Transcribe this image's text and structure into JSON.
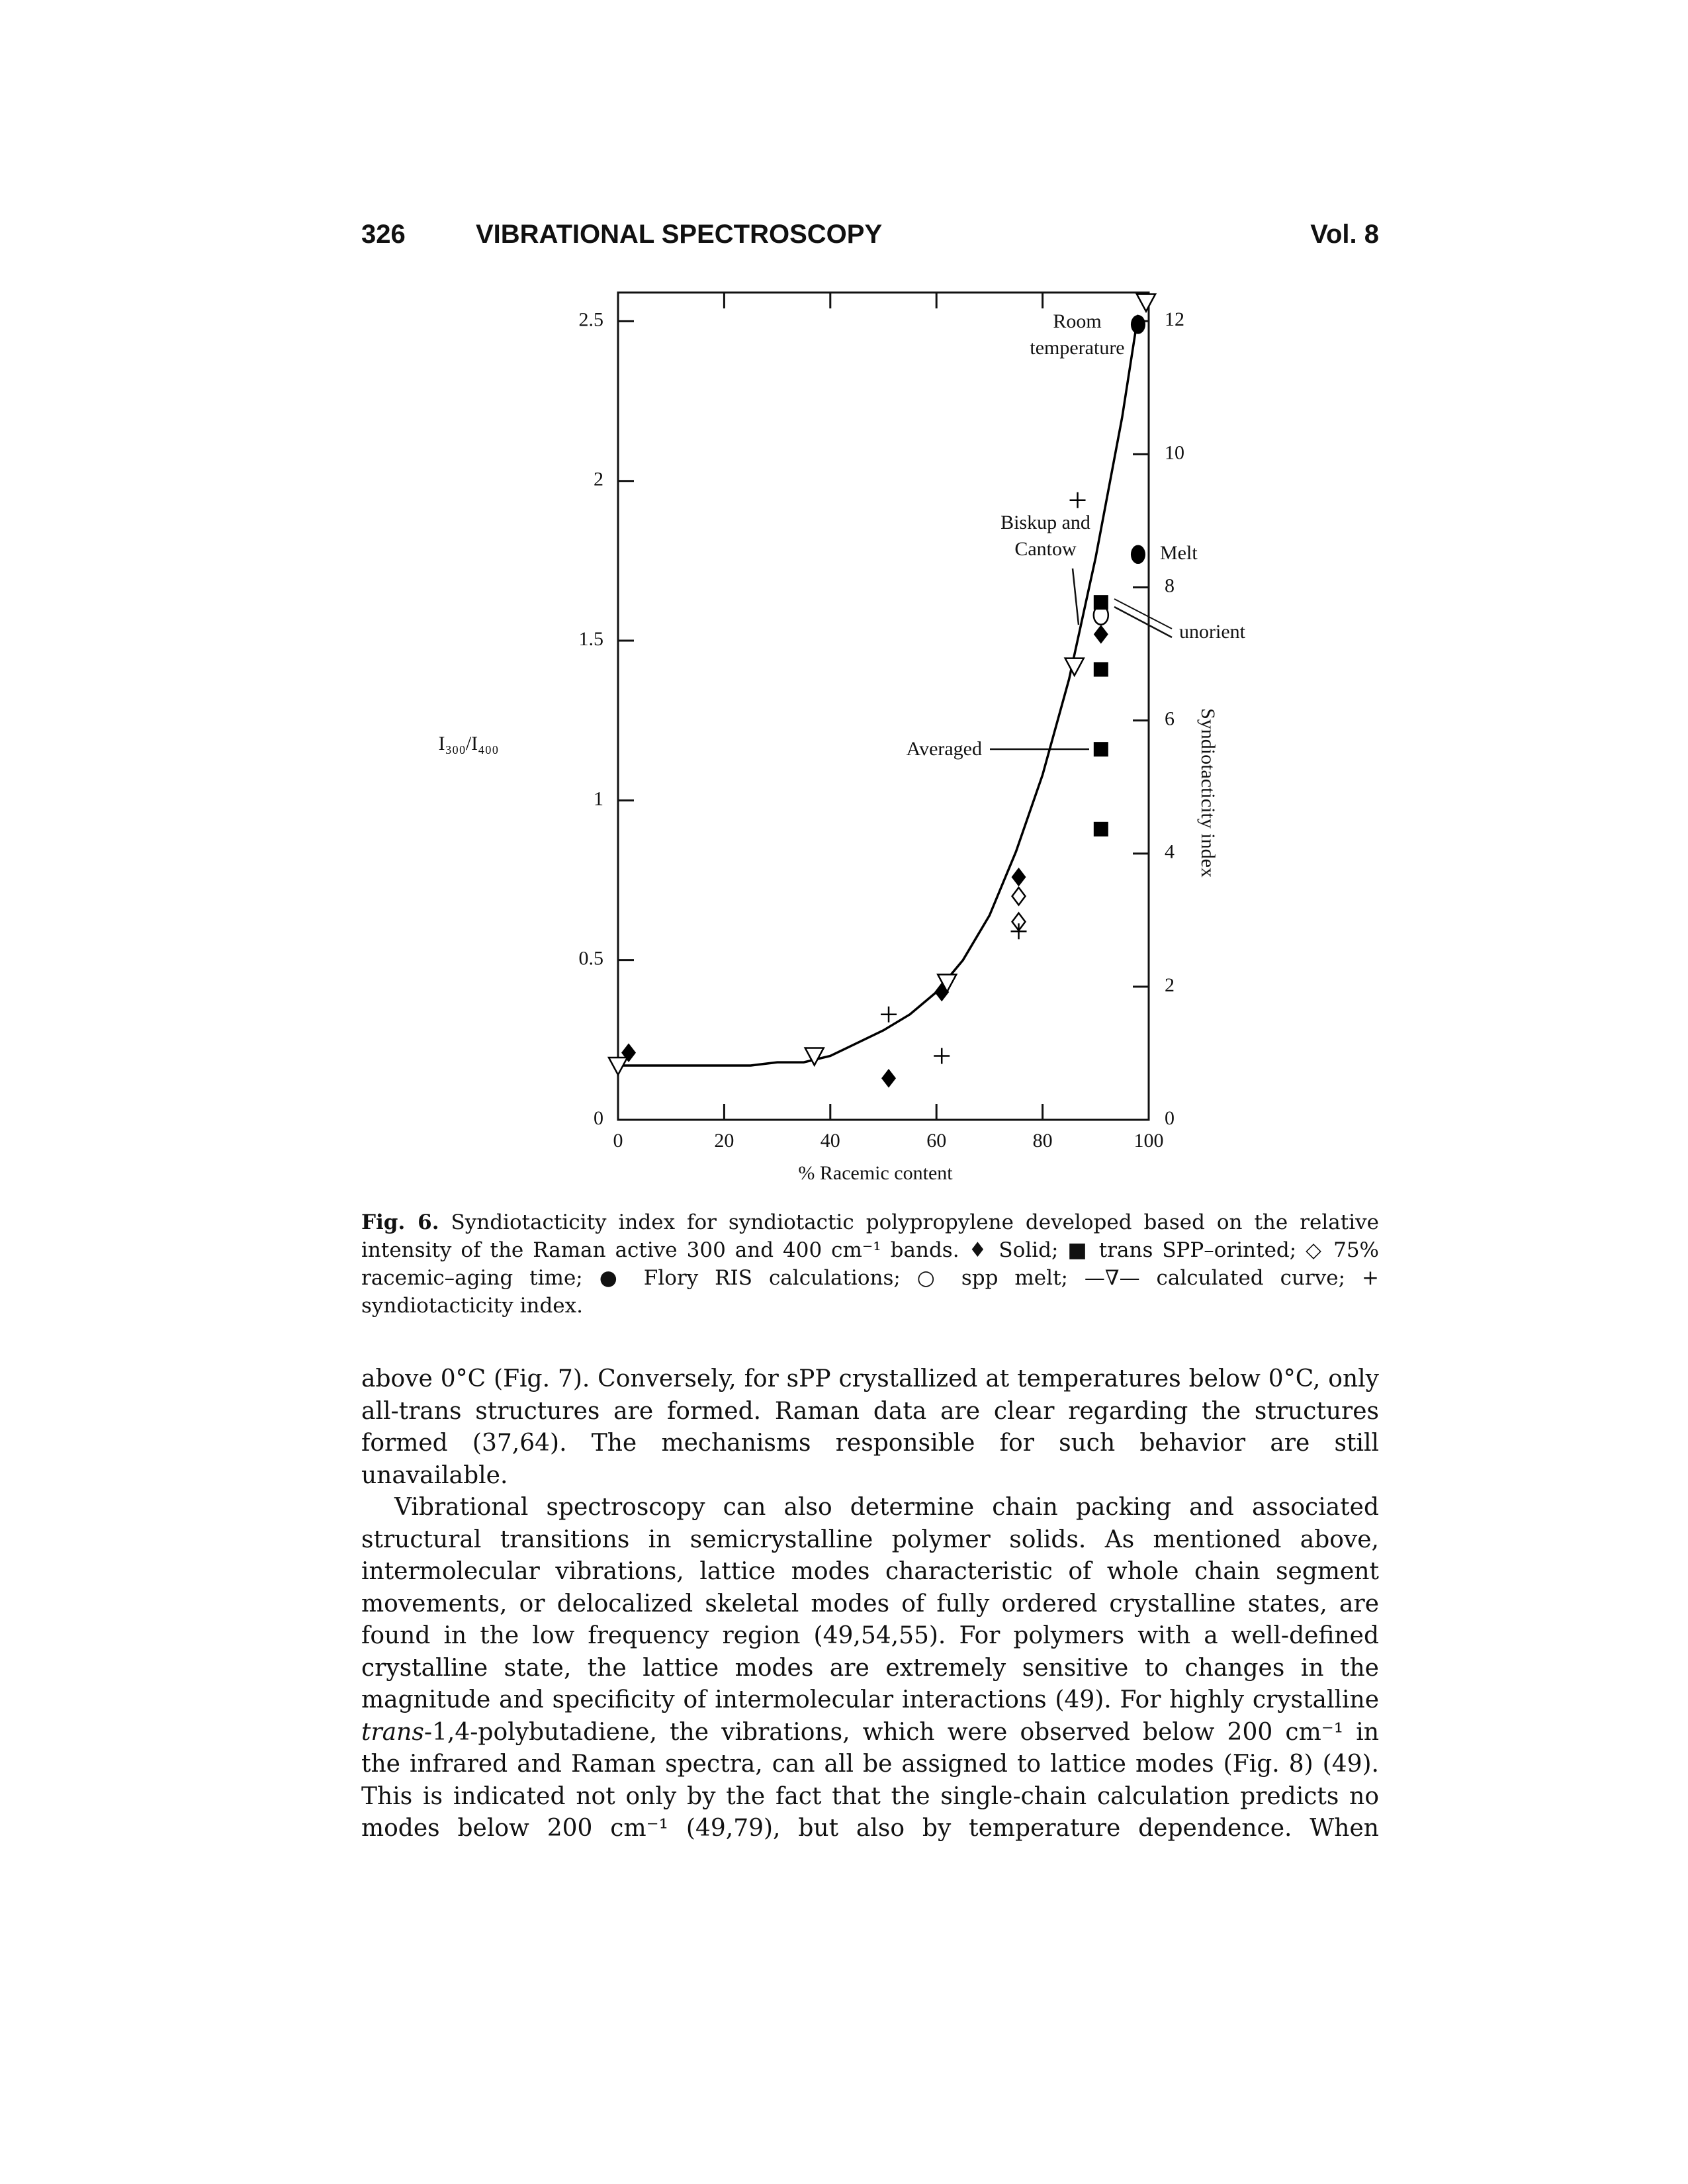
{
  "header": {
    "page": "326",
    "title": "VIBRATIONAL SPECTROSCOPY",
    "volume": "Vol. 8"
  },
  "chart_data": {
    "type": "scatter",
    "x_label": "% Racemic content",
    "y_label": "I₃₀₀/I₄₀₀",
    "y2_label": "Syndiotacticity index",
    "xlim": [
      0,
      100
    ],
    "xticks": [
      0,
      20,
      40,
      60,
      80,
      100
    ],
    "ylim": [
      0,
      2.59
    ],
    "yticks": [
      0,
      0.5,
      1,
      1.5,
      2,
      2.5
    ],
    "y2lim": [
      0,
      12.43
    ],
    "y2ticks": [
      0,
      2,
      4,
      6,
      8,
      10,
      12
    ],
    "annotations": [
      [
        "Room",
        "temperature"
      ],
      [
        "Biskup and",
        "Cantow"
      ],
      [
        "Averaged"
      ],
      [
        "Melt"
      ],
      [
        "unorient"
      ]
    ],
    "series": [
      {
        "marker": "diamond",
        "color": "#000000",
        "x": [
          2,
          51,
          61,
          75.5,
          91
        ],
        "values": [
          0.21,
          0.13,
          0.4,
          0.76,
          1.52
        ]
      },
      {
        "marker": "square",
        "color": "#000000",
        "x": [
          91,
          91,
          91,
          91
        ],
        "values": [
          1.62,
          1.41,
          1.16,
          0.91
        ]
      },
      {
        "marker": "diamond-open",
        "color": "#000000",
        "x": [
          75.5,
          75.5
        ],
        "values": [
          0.7,
          0.62
        ]
      },
      {
        "marker": "circle",
        "color": "#000000",
        "x": [
          98,
          98
        ],
        "values": [
          2.49,
          1.77
        ]
      },
      {
        "marker": "circle-open",
        "color": "#000000",
        "x": [
          91
        ],
        "values": [
          1.58
        ]
      },
      {
        "marker": "triangle-open",
        "color": "#000000",
        "x": [
          0,
          37,
          62,
          86,
          99.5
        ],
        "values": [
          0.17,
          0.2,
          0.43,
          1.42,
          2.56
        ]
      },
      {
        "marker": "plus",
        "color": "#000000",
        "x": [
          51,
          61,
          75.5,
          86.6
        ],
        "values": [
          0.33,
          0.2,
          0.59,
          1.94
        ]
      },
      {
        "marker": "line",
        "color": "#000000",
        "x": [
          0,
          10,
          20,
          25,
          30,
          35,
          40,
          45,
          50,
          55,
          60,
          65,
          70,
          75,
          80,
          85,
          90,
          95,
          98
        ],
        "values": [
          0.17,
          0.17,
          0.17,
          0.17,
          0.18,
          0.18,
          0.2,
          0.24,
          0.28,
          0.33,
          0.4,
          0.5,
          0.64,
          0.84,
          1.08,
          1.38,
          1.76,
          2.2,
          2.52
        ]
      }
    ]
  },
  "caption": {
    "label": "Fig. 6.",
    "text": "Syndiotacticity index for syndiotactic polypropylene developed based on the relative intensity of the Raman active 300 and 400 cm⁻¹ bands. ♦ Solid; ■ trans SPP–orinted; ◇ 75% racemic–aging time; ● Flory RIS calculations; ○ spp melt; —∇— calculated curve; + syndiotacticity index."
  },
  "paragraphs": [
    "above 0°C (Fig. 7). Conversely, for sPP crystallized at temperatures below 0°C, only all-trans structures are formed. Raman data are clear regarding the structures formed (37,64). The mechanisms responsible for such behavior are still unavailable.",
    [
      "Vibrational spectroscopy can also determine chain packing and associated structural transitions in semicrystalline polymer solids. As mentioned above, intermolecular vibrations, lattice modes characteristic of whole chain segment movements, or delocalized skeletal modes of fully ordered crystalline states, are found in the low frequency region (49,54,55). For polymers with a well-defined crystalline state, the lattice modes are extremely sensitive to changes in the magnitude and specificity of intermolecular interactions (49). For highly crystalline ",
      "trans",
      "-1,4-polybutadiene, the vibrations, which were observed below 200 cm⁻¹ in the infrared and Raman spectra, can all be assigned to lattice modes (Fig. 8) (49). This is indicated not only by the fact that the single-chain calculation predicts no modes below 200 cm⁻¹ (49,79), but also by temperature dependence. When"
    ]
  ]
}
